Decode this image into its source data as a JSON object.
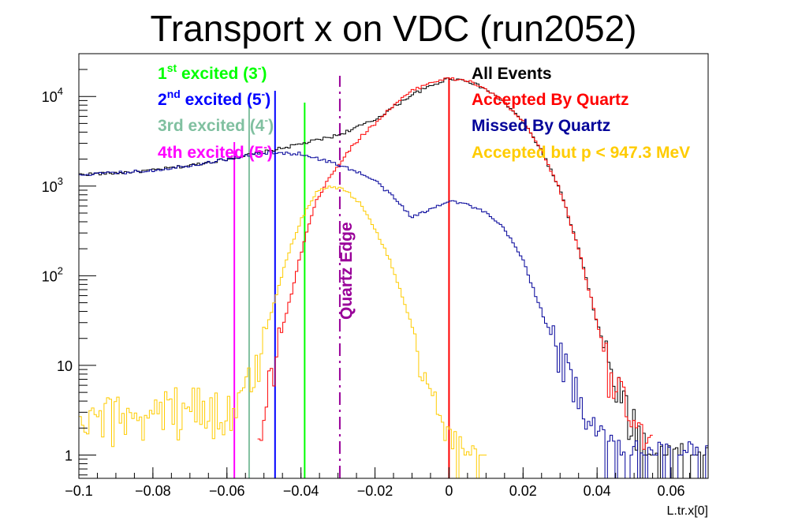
{
  "chart_data": {
    "type": "line",
    "title": "Transport x on VDC (run2052)",
    "xlabel": "L.tr.x[0]",
    "ylabel": "",
    "xlim": [
      -0.1,
      0.07
    ],
    "ylim": [
      0.55,
      30000
    ],
    "yscale": "log",
    "x_ticks": [
      {
        "value": -0.1,
        "label": "−0.1"
      },
      {
        "value": -0.08,
        "label": "−0.08"
      },
      {
        "value": -0.06,
        "label": "−0.06"
      },
      {
        "value": -0.04,
        "label": "−0.04"
      },
      {
        "value": -0.02,
        "label": "−0.02"
      },
      {
        "value": 0,
        "label": "0"
      },
      {
        "value": 0.02,
        "label": "0.02"
      },
      {
        "value": 0.04,
        "label": "0.04"
      },
      {
        "value": 0.06,
        "label": "0.06"
      }
    ],
    "y_ticks": [
      {
        "value": 1,
        "base": "1",
        "exp": ""
      },
      {
        "value": 10,
        "base": "10",
        "exp": ""
      },
      {
        "value": 100,
        "base": "10",
        "exp": "2"
      },
      {
        "value": 1000,
        "base": "10",
        "exp": "3"
      },
      {
        "value": 10000,
        "base": "10",
        "exp": "4"
      }
    ],
    "grid": false,
    "legend_position": "top-right",
    "series": [
      {
        "name": "All Events",
        "color": "#000000",
        "points": [
          [
            -0.1,
            1350
          ],
          [
            -0.09,
            1400
          ],
          [
            -0.08,
            1500
          ],
          [
            -0.07,
            1700
          ],
          [
            -0.06,
            2000
          ],
          [
            -0.05,
            2400
          ],
          [
            -0.04,
            2950
          ],
          [
            -0.03,
            3700
          ],
          [
            -0.02,
            5500
          ],
          [
            -0.01,
            10500
          ],
          [
            0,
            16000
          ],
          [
            0.005,
            15000
          ],
          [
            0.01,
            12000
          ],
          [
            0.015,
            8500
          ],
          [
            0.02,
            5200
          ],
          [
            0.025,
            2500
          ],
          [
            0.03,
            900
          ],
          [
            0.035,
            200
          ],
          [
            0.04,
            30
          ],
          [
            0.045,
            6
          ],
          [
            0.05,
            2
          ],
          [
            0.055,
            1
          ],
          [
            0.06,
            0.9
          ],
          [
            0.07,
            0.9
          ]
        ]
      },
      {
        "name": "Accepted By Quartz",
        "color": "#ff0000",
        "points": [
          [
            -0.052,
            1.2
          ],
          [
            -0.05,
            3
          ],
          [
            -0.048,
            8
          ],
          [
            -0.045,
            25
          ],
          [
            -0.042,
            80
          ],
          [
            -0.039,
            260
          ],
          [
            -0.036,
            650
          ],
          [
            -0.033,
            1150
          ],
          [
            -0.03,
            1700
          ],
          [
            -0.027,
            2500
          ],
          [
            -0.024,
            3500
          ],
          [
            -0.02,
            5000
          ],
          [
            -0.015,
            8000
          ],
          [
            -0.01,
            11500
          ],
          [
            -0.005,
            14500
          ],
          [
            0,
            15800
          ],
          [
            0.005,
            15000
          ],
          [
            0.01,
            12000
          ],
          [
            0.015,
            8500
          ],
          [
            0.02,
            5200
          ],
          [
            0.025,
            2500
          ],
          [
            0.03,
            900
          ],
          [
            0.035,
            200
          ],
          [
            0.04,
            30
          ],
          [
            0.045,
            6
          ],
          [
            0.05,
            2
          ],
          [
            0.055,
            1
          ]
        ]
      },
      {
        "name": "Missed By Quartz",
        "color": "#000099",
        "points": [
          [
            -0.1,
            1350
          ],
          [
            -0.09,
            1400
          ],
          [
            -0.08,
            1500
          ],
          [
            -0.07,
            1700
          ],
          [
            -0.06,
            2000
          ],
          [
            -0.05,
            2350
          ],
          [
            -0.04,
            2300
          ],
          [
            -0.035,
            2000
          ],
          [
            -0.03,
            1750
          ],
          [
            -0.025,
            1450
          ],
          [
            -0.02,
            1150
          ],
          [
            -0.015,
            750
          ],
          [
            -0.01,
            450
          ],
          [
            -0.005,
            550
          ],
          [
            0,
            700
          ],
          [
            0.005,
            620
          ],
          [
            0.01,
            500
          ],
          [
            0.015,
            330
          ],
          [
            0.02,
            150
          ],
          [
            0.025,
            40
          ],
          [
            0.03,
            12
          ],
          [
            0.035,
            5
          ],
          [
            0.04,
            2
          ],
          [
            0.045,
            1
          ],
          [
            0.05,
            0.9
          ],
          [
            0.06,
            0.9
          ],
          [
            0.07,
            0.9
          ]
        ]
      },
      {
        "name": "Accepted but p < 947.3 MeV",
        "color": "#ffcc00",
        "points": [
          [
            -0.1,
            2
          ],
          [
            -0.09,
            3
          ],
          [
            -0.08,
            3
          ],
          [
            -0.07,
            4
          ],
          [
            -0.06,
            3
          ],
          [
            -0.056,
            4
          ],
          [
            -0.052,
            10
          ],
          [
            -0.048,
            40
          ],
          [
            -0.044,
            150
          ],
          [
            -0.04,
            420
          ],
          [
            -0.036,
            850
          ],
          [
            -0.032,
            1000
          ],
          [
            -0.028,
            900
          ],
          [
            -0.024,
            650
          ],
          [
            -0.02,
            330
          ],
          [
            -0.016,
            150
          ],
          [
            -0.012,
            50
          ],
          [
            -0.008,
            15
          ],
          [
            -0.004,
            4
          ],
          [
            0,
            1.5
          ],
          [
            0.004,
            0.9
          ],
          [
            0.01,
            0.8
          ]
        ]
      }
    ],
    "vertical_lines": [
      {
        "x": -0.058,
        "color": "#ff00ff",
        "style": "solid",
        "label": ""
      },
      {
        "x": -0.054,
        "color": "#80c0a0",
        "style": "solid",
        "label": ""
      },
      {
        "x": -0.047,
        "color": "#0000ff",
        "style": "solid",
        "label": ""
      },
      {
        "x": -0.039,
        "color": "#00ff00",
        "style": "solid",
        "label": ""
      },
      {
        "x": -0.0295,
        "color": "#990099",
        "style": "dashdot",
        "label": "Quartz Edge"
      },
      {
        "x": 0.0,
        "color": "#ff0000",
        "style": "solid",
        "label": ""
      }
    ],
    "state_labels": [
      {
        "main": "1",
        "sup": "st",
        "rest": " excited (3",
        "sup2": "-",
        "end": ")",
        "color": "#00ff00"
      },
      {
        "main": "2",
        "sup": "nd",
        "rest": " excited (5",
        "sup2": "-",
        "end": ")",
        "color": "#0000ff"
      },
      {
        "main": "3rd excited (4",
        "sup": "",
        "rest": "",
        "sup2": "-",
        "end": ")",
        "color": "#80c0a0"
      },
      {
        "main": "4th excited (5",
        "sup": "",
        "rest": "",
        "sup2": "-",
        "end": ")",
        "color": "#ff00ff"
      }
    ]
  }
}
